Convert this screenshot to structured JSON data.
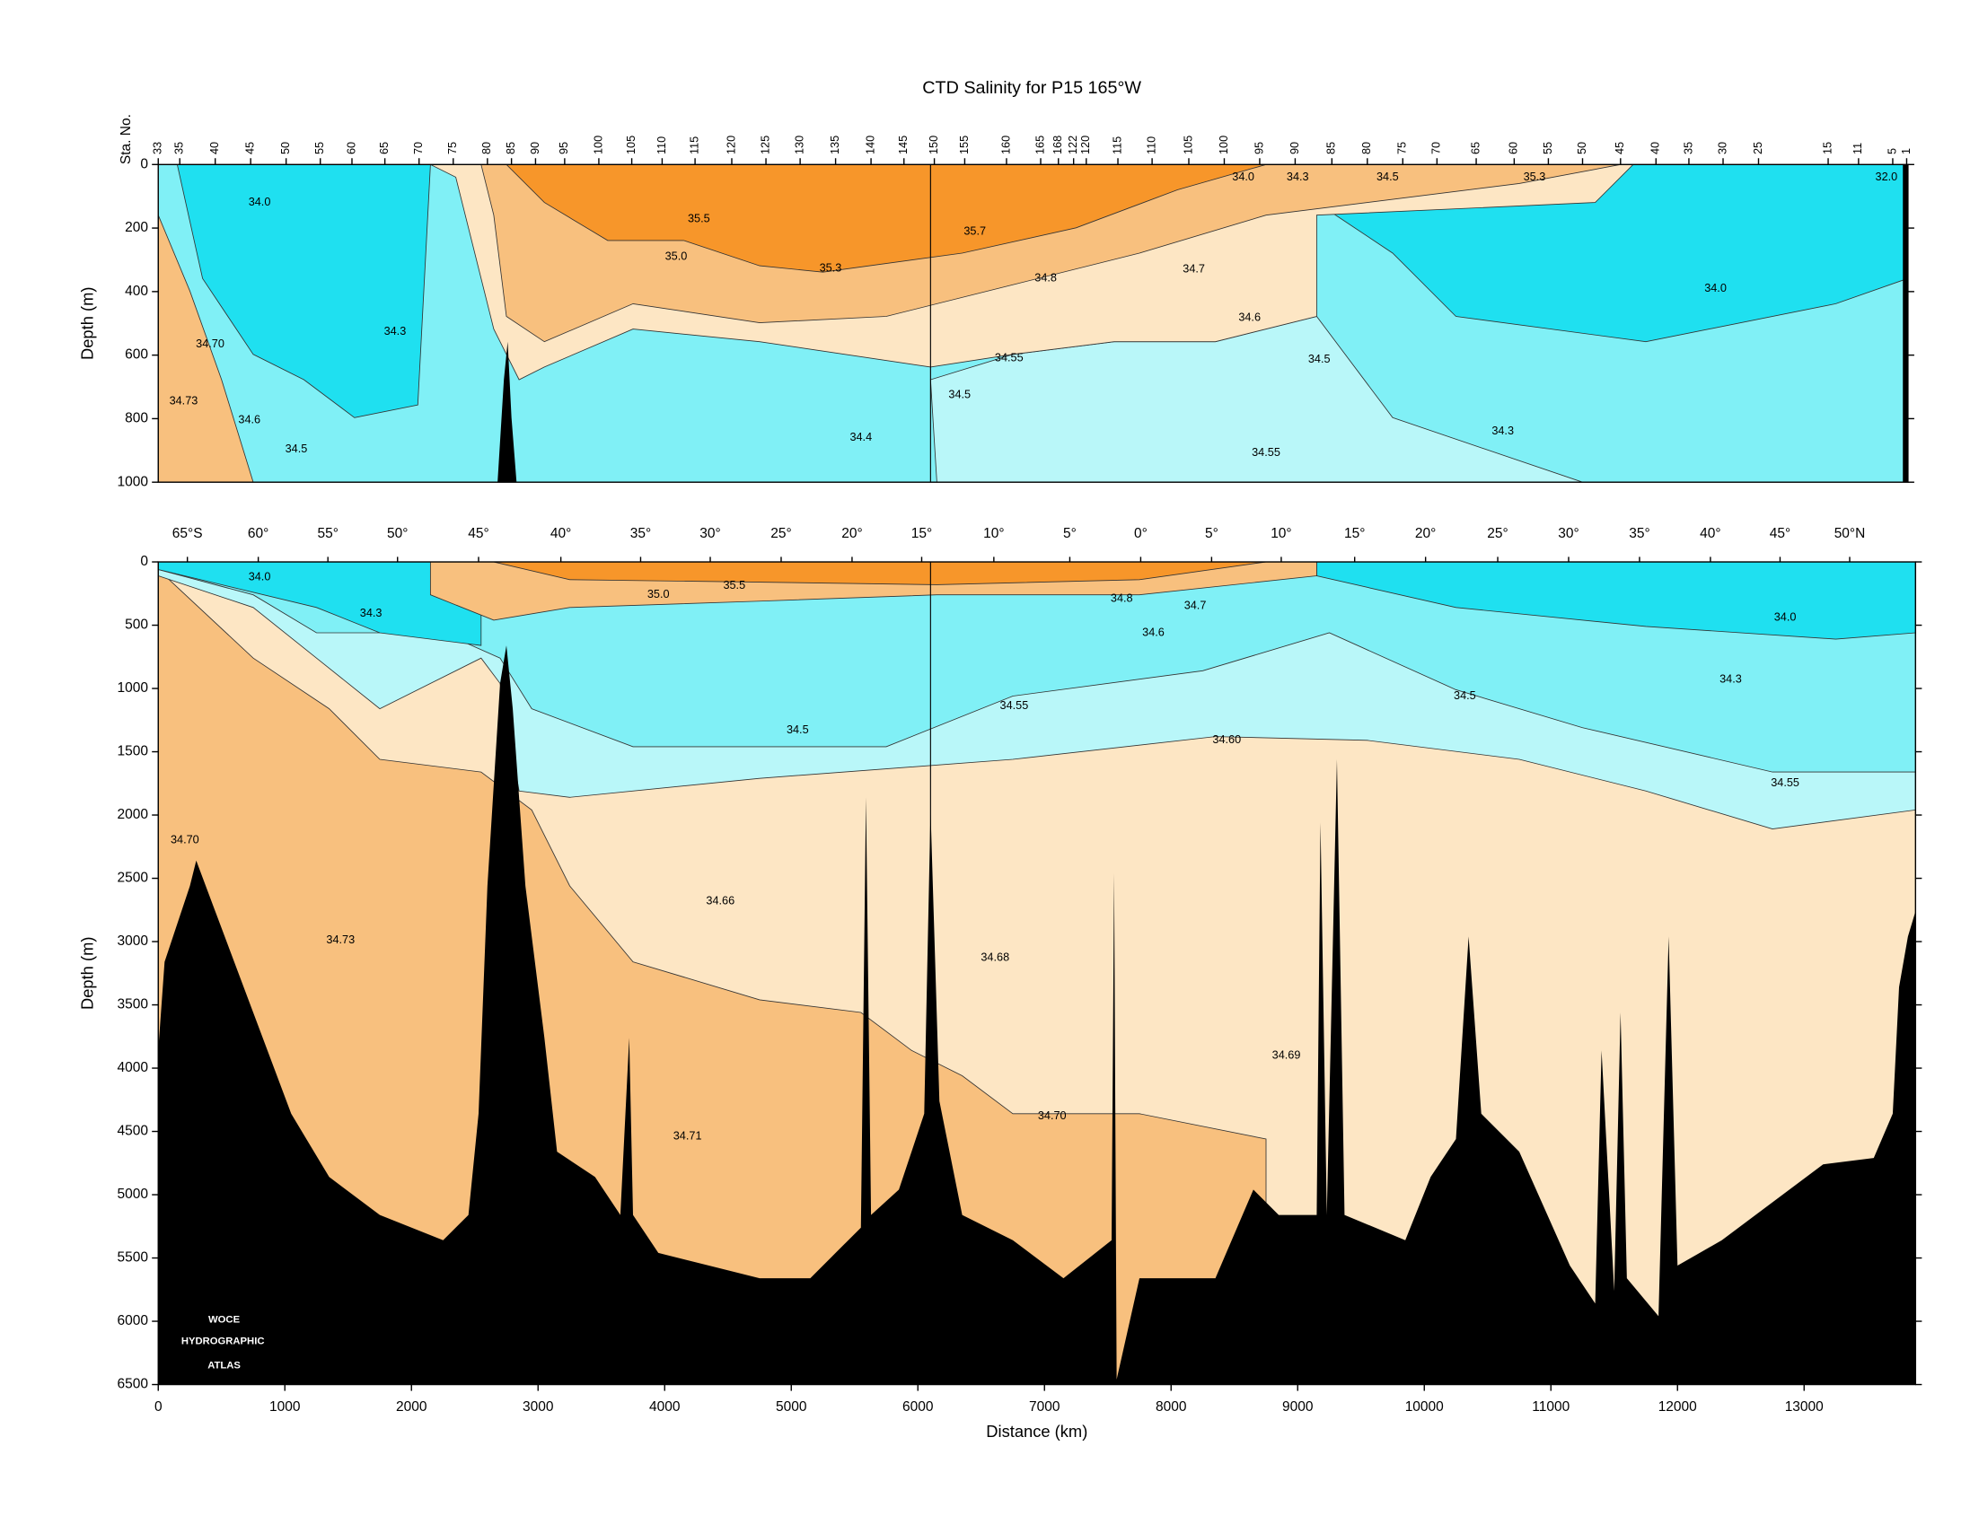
{
  "chart_data": [
    {
      "type": "contour",
      "title": "CTD Salinity for P15 165°W",
      "ylabel": "Depth (m)",
      "station_label": "Sta. No.",
      "xlim": [
        0,
        13820
      ],
      "ylim": [
        0,
        1000
      ],
      "yticks": [
        0,
        200,
        400,
        600,
        800,
        1000
      ],
      "stations": {
        "labels": [
          33,
          35,
          40,
          45,
          50,
          55,
          60,
          65,
          70,
          75,
          80,
          85,
          90,
          95,
          100,
          105,
          110,
          115,
          120,
          125,
          130,
          135,
          140,
          145,
          150,
          155,
          160,
          165,
          168,
          122,
          120,
          115,
          110,
          105,
          100,
          95,
          90,
          85,
          80,
          75,
          70,
          65,
          60,
          55,
          50,
          45,
          40,
          35,
          30,
          25,
          15,
          11,
          5,
          1
        ],
        "x": [
          0,
          170,
          450,
          730,
          1010,
          1280,
          1530,
          1790,
          2060,
          2330,
          2600,
          2790,
          2980,
          3210,
          3480,
          3740,
          3980,
          4240,
          4530,
          4800,
          5070,
          5350,
          5630,
          5890,
          6130,
          6370,
          6700,
          6970,
          7110,
          7230,
          7330,
          7580,
          7850,
          8140,
          8420,
          8700,
          8980,
          9270,
          9550,
          9830,
          10100,
          10410,
          10710,
          10980,
          11250,
          11550,
          11830,
          12090,
          12360,
          12640,
          13190,
          13430,
          13700,
          13810
        ]
      },
      "contour_labels": [
        "34.0",
        "35.5",
        "35.0",
        "35.3",
        "35.7",
        "34.8",
        "34.7",
        "34.0",
        "34.3",
        "34.5",
        "35.3",
        "32.0",
        "34.0",
        "34.6",
        "34.5",
        "34.3",
        "34.70",
        "34.73",
        "34.6",
        "34.5",
        "34.55",
        "34.5",
        "34.4",
        "34.55",
        "34.3"
      ]
    },
    {
      "type": "contour",
      "ylabel": "Depth (m)",
      "xlabel": "Distance (km)",
      "xlim": [
        0,
        13880
      ],
      "ylim": [
        0,
        6500
      ],
      "yticks": [
        0,
        500,
        1000,
        1500,
        2000,
        2500,
        3000,
        3500,
        4000,
        4500,
        5000,
        5500,
        6000,
        6500
      ],
      "xticks": [
        0,
        1000,
        2000,
        3000,
        4000,
        5000,
        6000,
        7000,
        8000,
        9000,
        10000,
        11000,
        12000,
        13000
      ],
      "latitudes": {
        "labels": [
          "65°S",
          "60°",
          "55°",
          "50°",
          "45°",
          "40°",
          "35°",
          "30°",
          "25°",
          "20°",
          "15°",
          "10°",
          "5°",
          "0°",
          "5°",
          "10°",
          "15°",
          "20°",
          "25°",
          "30°",
          "35°",
          "40°",
          "45°",
          "50°N"
        ],
        "x": [
          230,
          790,
          1340,
          1890,
          2530,
          3180,
          3810,
          4360,
          4920,
          5480,
          6030,
          6600,
          7200,
          7760,
          8320,
          8870,
          9450,
          10010,
          10580,
          11140,
          11700,
          12260,
          12810,
          13360
        ]
      },
      "contour_labels": [
        "34.0",
        "34.3",
        "35.0",
        "35.5",
        "34.8",
        "34.7",
        "34.6",
        "34.0",
        "34.3",
        "34.5",
        "34.55",
        "34.5",
        "34.60",
        "34.55",
        "34.70",
        "34.66",
        "34.73",
        "34.68",
        "34.69",
        "34.70",
        "34.71"
      ],
      "logo": [
        "WOCE",
        "HYDROGRAPHIC",
        "ATLAS"
      ]
    }
  ]
}
